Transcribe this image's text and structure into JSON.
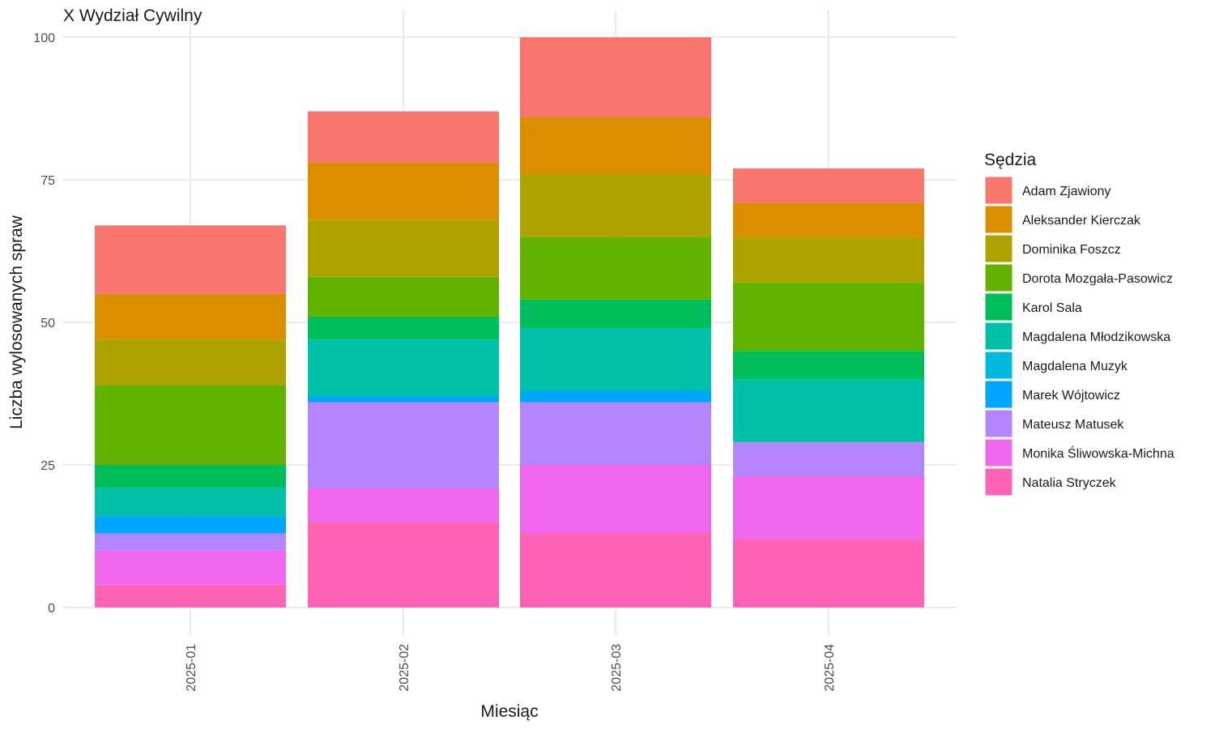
{
  "chart_data": {
    "type": "bar",
    "stacked": true,
    "title": "X Wydział Cywilny",
    "xlabel": "Miesiąc",
    "ylabel": "Liczba wylosowanych spraw",
    "ylim": [
      0,
      100
    ],
    "yticks": [
      0,
      25,
      50,
      75,
      100
    ],
    "grid": true,
    "legend": {
      "title": "Sędzia",
      "placement": "right"
    },
    "categories": [
      "2025-01",
      "2025-02",
      "2025-03",
      "2025-04"
    ],
    "series": [
      {
        "name": "Adam Zjawiony",
        "color": "#F8766D",
        "values": [
          12,
          9,
          14,
          6
        ]
      },
      {
        "name": "Aleksander Kierczak",
        "color": "#DB8E00",
        "values": [
          8,
          10,
          10,
          6
        ]
      },
      {
        "name": "Dominika Foszcz",
        "color": "#AEA200",
        "values": [
          8,
          10,
          11,
          8
        ]
      },
      {
        "name": "Dorota Mozgała-Pasowicz",
        "color": "#64B200",
        "values": [
          14,
          7,
          11,
          12
        ]
      },
      {
        "name": "Karol Sala",
        "color": "#00BD5C",
        "values": [
          4,
          4,
          5,
          5
        ]
      },
      {
        "name": "Magdalena Młodzikowska",
        "color": "#00C1A7",
        "values": [
          5,
          10,
          11,
          11
        ]
      },
      {
        "name": "Magdalena Muzyk",
        "color": "#00BADE",
        "values": [
          0,
          0,
          0,
          0
        ]
      },
      {
        "name": "Marek Wójtowicz",
        "color": "#00A6FF",
        "values": [
          3,
          1,
          2,
          0
        ]
      },
      {
        "name": "Mateusz Matusek",
        "color": "#B385FF",
        "values": [
          3,
          15,
          11,
          6
        ]
      },
      {
        "name": "Monika Śliwowska-Michna",
        "color": "#EF67EB",
        "values": [
          6,
          6,
          12,
          11
        ]
      },
      {
        "name": "Natalia Stryczek",
        "color": "#FF63B6",
        "values": [
          4,
          15,
          13,
          12
        ]
      }
    ]
  }
}
